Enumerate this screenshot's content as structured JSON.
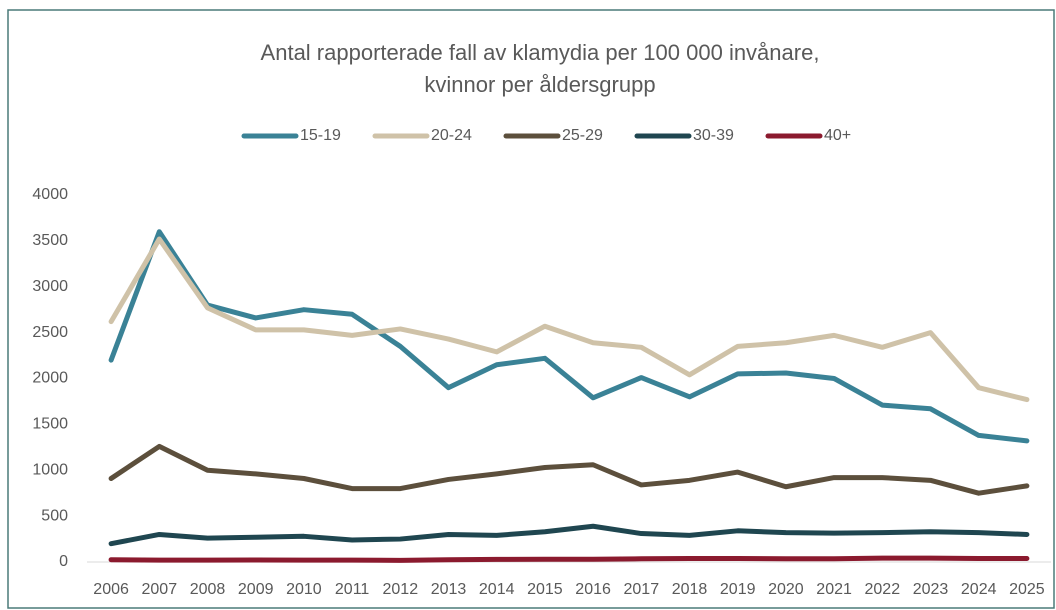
{
  "chart_data": {
    "type": "line",
    "title": [
      "Antal rapporterade fall av klamydia per 100 000 invånare,",
      "kvinnor per åldersgrupp"
    ],
    "categories": [
      "2006",
      "2007",
      "2008",
      "2009",
      "2010",
      "2011",
      "2012",
      "2013",
      "2014",
      "2015",
      "2016",
      "2017",
      "2018",
      "2019",
      "2020",
      "2021",
      "2022",
      "2023",
      "2024",
      "2025"
    ],
    "series": [
      {
        "name": "15-19",
        "color": "#3a8296",
        "values": [
          2200,
          3600,
          2800,
          2660,
          2750,
          2700,
          2350,
          1900,
          2150,
          2220,
          1790,
          2010,
          1800,
          2050,
          2060,
          2000,
          1710,
          1670,
          1380,
          1320
        ]
      },
      {
        "name": "20-24",
        "color": "#cfc2a8",
        "values": [
          2620,
          3520,
          2770,
          2530,
          2530,
          2470,
          2540,
          2430,
          2290,
          2570,
          2390,
          2340,
          2040,
          2350,
          2390,
          2470,
          2340,
          2500,
          1900,
          1770
        ]
      },
      {
        "name": "25-29",
        "color": "#5c4f3c",
        "values": [
          910,
          1260,
          1000,
          960,
          910,
          800,
          800,
          900,
          960,
          1030,
          1060,
          840,
          890,
          980,
          820,
          920,
          920,
          890,
          750,
          830
        ]
      },
      {
        "name": "30-39",
        "color": "#1f4650",
        "values": [
          200,
          300,
          260,
          270,
          280,
          240,
          250,
          300,
          290,
          330,
          390,
          310,
          290,
          340,
          320,
          315,
          320,
          330,
          320,
          300
        ]
      },
      {
        "name": "40+",
        "color": "#8b1a2e",
        "values": [
          25,
          20,
          20,
          22,
          20,
          20,
          18,
          25,
          28,
          30,
          30,
          35,
          38,
          38,
          35,
          35,
          42,
          42,
          38,
          38
        ]
      }
    ],
    "ylim": [
      0,
      4000
    ],
    "yticks": [
      0,
      500,
      1000,
      1500,
      2000,
      2500,
      3000,
      3500,
      4000
    ],
    "grid": false,
    "legend": "top"
  }
}
